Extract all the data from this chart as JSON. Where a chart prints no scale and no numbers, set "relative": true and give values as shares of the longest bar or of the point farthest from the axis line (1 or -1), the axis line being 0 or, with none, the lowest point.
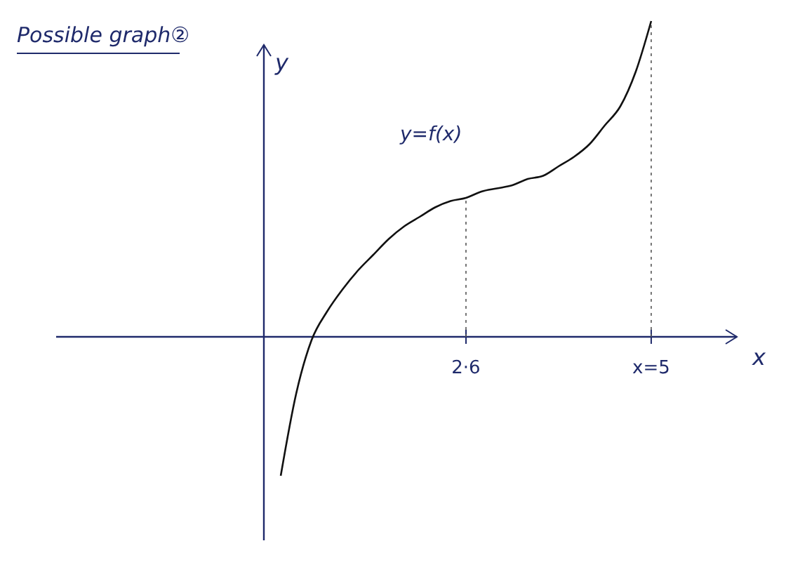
{
  "chart_data": {
    "type": "line",
    "title": "Possible graph②",
    "xlabel": "x",
    "ylabel": "y",
    "relative": true,
    "annotations": [
      "y=f(x)"
    ],
    "categories": [
      null,
      null,
      null,
      null,
      null,
      null,
      null,
      null,
      null,
      null,
      null,
      null,
      null,
      null,
      null,
      null,
      null,
      null,
      null,
      null,
      null,
      null,
      null,
      null,
      null,
      null,
      "2·6",
      null,
      null,
      null,
      null,
      null,
      null,
      null,
      null,
      null,
      null,
      null,
      "x=5",
      null,
      null,
      null,
      null,
      null
    ],
    "ref_lines": [
      {
        "axis": "x",
        "value": "2·6",
        "line_style": "dotted",
        "color": "#555555"
      },
      {
        "axis": "x",
        "value": "x=5",
        "line_style": "dotted",
        "color": "#555555"
      }
    ],
    "series": [
      {
        "color": "#111111",
        "values": [
          null,
          null,
          null,
          null,
          null,
          null,
          null,
          null,
          null,
          null,
          null,
          null,
          null,
          null,
          -0.44,
          -0.18,
          -0.01,
          0.08,
          0.15,
          0.21,
          0.26,
          0.31,
          0.35,
          0.38,
          0.41,
          0.43,
          0.44,
          0.46,
          0.47,
          0.48,
          0.5,
          0.51,
          0.54,
          0.57,
          0.61,
          0.67,
          0.73,
          0.84,
          1,
          null,
          null,
          null,
          null,
          null
        ]
      }
    ]
  }
}
